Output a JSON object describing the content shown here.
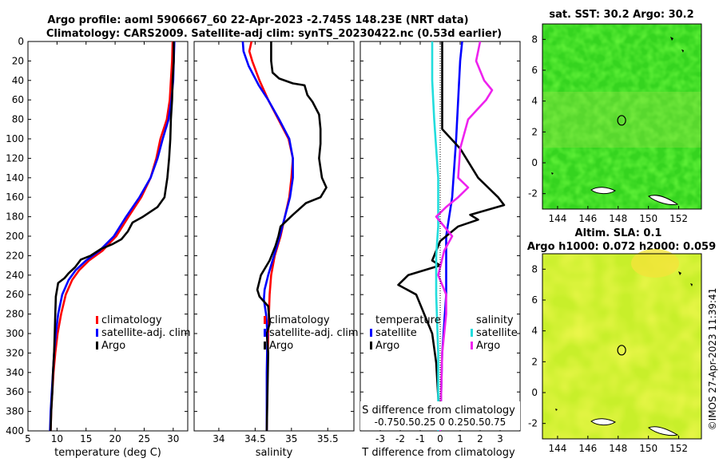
{
  "title_line1": "Argo profile: aoml 5906667_60 22-Apr-2023 -2.745S 148.23E (NRT data)",
  "title_line2": "Climatology: CARS2009. Satellite-adj clim: synTS_20230422.nc (0.53d earlier)",
  "side_caption": "©IMOS 27-Apr-2023 11:39:41",
  "colors": {
    "climatology": "#ff0000",
    "satellite": "#0000ff",
    "argo": "#000000",
    "sal_satellite": "#22dddd",
    "sal_argo": "#ee22ee"
  },
  "chart_data": [
    {
      "type": "line",
      "name": "temperature",
      "xlabel": "temperature (deg C)",
      "xlim": [
        5,
        32.5
      ],
      "ylim": [
        0,
        400
      ],
      "xticks": [
        5,
        10,
        15,
        20,
        25,
        30
      ],
      "yticks": [
        0,
        20,
        40,
        60,
        80,
        100,
        120,
        140,
        160,
        180,
        200,
        220,
        240,
        260,
        280,
        300,
        320,
        340,
        360,
        380,
        400
      ],
      "legend": [
        "climatology",
        "satellite-adj. clim",
        "Argo"
      ],
      "series": [
        {
          "name": "climatology",
          "color": "#ff0000",
          "points": [
            [
              29.9,
              0
            ],
            [
              29.8,
              20
            ],
            [
              29.6,
              40
            ],
            [
              29.4,
              60
            ],
            [
              28.9,
              80
            ],
            [
              27.8,
              100
            ],
            [
              27.1,
              120
            ],
            [
              26.1,
              140
            ],
            [
              24.5,
              160
            ],
            [
              22.3,
              180
            ],
            [
              20.2,
              200
            ],
            [
              17.8,
              215
            ],
            [
              15.5,
              225
            ],
            [
              13.8,
              235
            ],
            [
              12.6,
              245
            ],
            [
              11.5,
              260
            ],
            [
              10.7,
              280
            ],
            [
              10.1,
              300
            ],
            [
              9.7,
              320
            ],
            [
              9.4,
              340
            ],
            [
              9.2,
              360
            ],
            [
              9.0,
              380
            ],
            [
              8.9,
              400
            ]
          ]
        },
        {
          "name": "satellite-adj. clim",
          "color": "#0000ff",
          "points": [
            [
              30.2,
              0
            ],
            [
              30.1,
              20
            ],
            [
              30.0,
              40
            ],
            [
              29.7,
              60
            ],
            [
              29.2,
              80
            ],
            [
              28.2,
              100
            ],
            [
              27.3,
              120
            ],
            [
              26.1,
              140
            ],
            [
              24.2,
              160
            ],
            [
              21.9,
              180
            ],
            [
              19.8,
              200
            ],
            [
              17.3,
              215
            ],
            [
              15.0,
              225
            ],
            [
              13.2,
              235
            ],
            [
              12.0,
              245
            ],
            [
              10.9,
              260
            ],
            [
              10.2,
              280
            ],
            [
              9.8,
              300
            ],
            [
              9.5,
              320
            ],
            [
              9.3,
              340
            ],
            [
              9.1,
              360
            ],
            [
              8.9,
              380
            ],
            [
              8.8,
              400
            ]
          ]
        },
        {
          "name": "Argo",
          "color": "#000000",
          "points": [
            [
              30.1,
              0
            ],
            [
              30.1,
              20
            ],
            [
              29.9,
              40
            ],
            [
              29.8,
              60
            ],
            [
              29.6,
              80
            ],
            [
              29.5,
              100
            ],
            [
              29.3,
              120
            ],
            [
              29.0,
              140
            ],
            [
              28.5,
              160
            ],
            [
              27.3,
              170
            ],
            [
              24.8,
              180
            ],
            [
              23.0,
              186
            ],
            [
              22.2,
              195
            ],
            [
              21.1,
              203
            ],
            [
              19.6,
              208
            ],
            [
              17.6,
              213
            ],
            [
              15.8,
              220
            ],
            [
              14.1,
              224
            ],
            [
              13.1,
              232
            ],
            [
              12.0,
              238
            ],
            [
              11.3,
              243
            ],
            [
              10.2,
              248
            ],
            [
              9.8,
              262
            ],
            [
              9.7,
              280
            ],
            [
              9.6,
              300
            ],
            [
              9.5,
              320
            ],
            [
              9.3,
              340
            ],
            [
              9.2,
              360
            ],
            [
              9.0,
              380
            ],
            [
              8.9,
              400
            ]
          ]
        }
      ]
    },
    {
      "type": "line",
      "name": "salinity",
      "xlabel": "salinity",
      "xlim": [
        33.66,
        35.86
      ],
      "ylim": [
        0,
        400
      ],
      "xticks": [
        34,
        34.5,
        35,
        35.5
      ],
      "legend": [
        "climatology",
        "satellite-adj. clim",
        "Argo"
      ],
      "series": [
        {
          "name": "climatology",
          "color": "#ff0000",
          "points": [
            [
              34.45,
              0
            ],
            [
              34.42,
              10
            ],
            [
              34.46,
              20
            ],
            [
              34.56,
              40
            ],
            [
              34.68,
              60
            ],
            [
              34.82,
              80
            ],
            [
              34.96,
              100
            ],
            [
              35.02,
              120
            ],
            [
              35.0,
              140
            ],
            [
              34.97,
              160
            ],
            [
              34.91,
              180
            ],
            [
              34.85,
              200
            ],
            [
              34.77,
              220
            ],
            [
              34.72,
              240
            ],
            [
              34.7,
              260
            ],
            [
              34.69,
              280
            ],
            [
              34.68,
              300
            ],
            [
              34.67,
              340
            ],
            [
              34.66,
              400
            ]
          ]
        },
        {
          "name": "satellite-adj. clim",
          "color": "#0000ff",
          "points": [
            [
              34.33,
              0
            ],
            [
              34.34,
              10
            ],
            [
              34.41,
              25
            ],
            [
              34.55,
              45
            ],
            [
              34.68,
              60
            ],
            [
              34.83,
              80
            ],
            [
              34.97,
              100
            ],
            [
              35.02,
              120
            ],
            [
              35.02,
              140
            ],
            [
              34.98,
              160
            ],
            [
              34.91,
              180
            ],
            [
              34.84,
              200
            ],
            [
              34.76,
              220
            ],
            [
              34.68,
              240
            ],
            [
              34.63,
              255
            ],
            [
              34.62,
              265
            ],
            [
              34.65,
              280
            ],
            [
              34.67,
              300
            ],
            [
              34.66,
              340
            ],
            [
              34.66,
              400
            ]
          ]
        },
        {
          "name": "Argo",
          "color": "#000000",
          "points": [
            [
              34.72,
              0
            ],
            [
              34.72,
              20
            ],
            [
              34.74,
              32
            ],
            [
              34.83,
              38
            ],
            [
              35.02,
              43
            ],
            [
              35.18,
              45
            ],
            [
              35.22,
              55
            ],
            [
              35.29,
              62
            ],
            [
              35.38,
              75
            ],
            [
              35.4,
              90
            ],
            [
              35.4,
              105
            ],
            [
              35.38,
              120
            ],
            [
              35.42,
              140
            ],
            [
              35.48,
              150
            ],
            [
              35.4,
              160
            ],
            [
              35.2,
              166
            ],
            [
              35.02,
              178
            ],
            [
              34.85,
              190
            ],
            [
              34.82,
              200
            ],
            [
              34.78,
              210
            ],
            [
              34.7,
              225
            ],
            [
              34.58,
              240
            ],
            [
              34.53,
              255
            ],
            [
              34.56,
              262
            ],
            [
              34.68,
              272
            ],
            [
              34.7,
              290
            ],
            [
              34.66,
              300
            ],
            [
              34.68,
              320
            ],
            [
              34.66,
              400
            ]
          ]
        }
      ]
    },
    {
      "type": "line",
      "name": "difference",
      "xlabel": "T difference from climatology",
      "top_label": "S difference from climatology",
      "top_ticks": [
        "-0.75",
        "0.5",
        "0.25",
        "0",
        "0.25",
        "0.5",
        "0.75"
      ],
      "top_ticks_text": "-0.750.50.25  0  0.250.50.75",
      "xlim": [
        -4,
        4
      ],
      "xticks": [
        -3,
        -2,
        -1,
        0,
        1,
        2,
        3
      ],
      "legend_left_title": "temperature",
      "legend_right_title": "salinity",
      "legend_left": [
        "satellite",
        "Argo"
      ],
      "legend_right": [
        "satellite",
        "Argo"
      ],
      "series": [
        {
          "name": "T satellite",
          "color": "#0000ff",
          "points": [
            [
              1.1,
              0
            ],
            [
              1.0,
              20
            ],
            [
              0.9,
              60
            ],
            [
              0.8,
              100
            ],
            [
              0.6,
              160
            ],
            [
              0.3,
              200
            ],
            [
              0.3,
              260
            ],
            [
              0.1,
              320
            ],
            [
              0.0,
              400
            ]
          ]
        },
        {
          "name": "T Argo",
          "color": "#000000",
          "points": [
            [
              0.1,
              0
            ],
            [
              0.1,
              90
            ],
            [
              1.0,
              110
            ],
            [
              1.9,
              140
            ],
            [
              2.9,
              160
            ],
            [
              3.2,
              168
            ],
            [
              1.5,
              178
            ],
            [
              1.9,
              183
            ],
            [
              0.9,
              190
            ],
            [
              0.0,
              205
            ],
            [
              -0.2,
              215
            ],
            [
              -0.4,
              225
            ],
            [
              0.0,
              230
            ],
            [
              -1.6,
              240
            ],
            [
              -2.1,
              250
            ],
            [
              -1.2,
              260
            ],
            [
              -0.8,
              280
            ],
            [
              -0.4,
              300
            ],
            [
              -0.2,
              330
            ],
            [
              0.0,
              400
            ]
          ]
        },
        {
          "name": "S satellite",
          "color": "#22dddd",
          "points": [
            [
              -0.4,
              0
            ],
            [
              -0.4,
              40
            ],
            [
              -0.3,
              80
            ],
            [
              -0.1,
              140
            ],
            [
              -0.1,
              190
            ],
            [
              -0.2,
              220
            ],
            [
              -0.2,
              260
            ],
            [
              -0.1,
              320
            ],
            [
              -0.1,
              400
            ]
          ]
        },
        {
          "name": "S Argo",
          "color": "#ee22ee",
          "points": [
            [
              2.0,
              0
            ],
            [
              1.8,
              20
            ],
            [
              2.2,
              40
            ],
            [
              2.6,
              50
            ],
            [
              2.3,
              60
            ],
            [
              1.4,
              80
            ],
            [
              1.0,
              110
            ],
            [
              0.9,
              140
            ],
            [
              1.4,
              150
            ],
            [
              0.9,
              160
            ],
            [
              0.3,
              170
            ],
            [
              -0.2,
              180
            ],
            [
              0.6,
              200
            ],
            [
              0.2,
              215
            ],
            [
              -0.1,
              240
            ],
            [
              0.3,
              260
            ],
            [
              0.3,
              280
            ],
            [
              0.2,
              300
            ],
            [
              0.1,
              320
            ],
            [
              0.0,
              400
            ]
          ]
        }
      ]
    },
    {
      "type": "heatmap",
      "name": "sst_map",
      "title": "sat. SST: 30.2 Argo: 30.2",
      "xlim": [
        143,
        153.5
      ],
      "ylim": [
        -3,
        9
      ],
      "xticks": [
        144,
        146,
        148,
        150,
        152
      ],
      "yticks": [
        -2,
        0,
        2,
        4,
        6,
        8
      ],
      "marker": [
        148.23,
        2.75
      ]
    },
    {
      "type": "heatmap",
      "name": "sla_map",
      "title_line1": "Altim. SLA: 0.1",
      "title_line2": "Argo h1000: 0.072 h2000: 0.059",
      "xlim": [
        143,
        153.5
      ],
      "ylim": [
        -3,
        9
      ],
      "xticks": [
        144,
        146,
        148,
        150,
        152
      ],
      "yticks": [
        -2,
        0,
        2,
        4,
        6,
        8
      ],
      "marker": [
        148.23,
        2.75
      ]
    }
  ]
}
